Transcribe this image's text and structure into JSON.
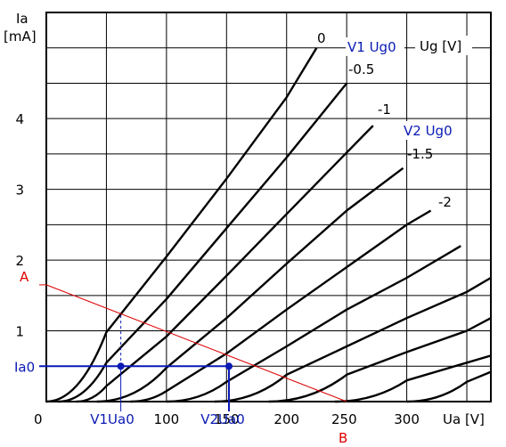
{
  "chart_data": {
    "type": "line",
    "title": "",
    "xlabel": "Ua [V]",
    "ylabel": "Ia [mA]",
    "xlim": [
      0,
      370
    ],
    "ylim": [
      0,
      5.5
    ],
    "grid": true,
    "x_ticks": [
      {
        "v": 0,
        "label": "0"
      },
      {
        "v": 100,
        "label": "100"
      },
      {
        "v": 150,
        "label": "150"
      },
      {
        "v": 200,
        "label": "200"
      },
      {
        "v": 300,
        "label": "300"
      }
    ],
    "y_ticks": [
      {
        "v": 1,
        "label": "1"
      },
      {
        "v": 2,
        "label": "2"
      },
      {
        "v": 3,
        "label": "3"
      },
      {
        "v": 4,
        "label": "4"
      }
    ],
    "x_tick_step": 50,
    "y_tick_step": 0.5,
    "legend_title": "Ug [V]",
    "series": [
      {
        "name": "0",
        "x": [
          0,
          50,
          100,
          150,
          200,
          225
        ],
        "y": [
          0,
          0.98,
          2.05,
          3.15,
          4.3,
          5.0
        ]
      },
      {
        "name": "-0.5",
        "x": [
          10,
          50,
          100,
          150,
          200,
          250
        ],
        "y": [
          0,
          0.55,
          1.45,
          2.45,
          3.45,
          4.5
        ]
      },
      {
        "name": "-1",
        "x": [
          25,
          50,
          100,
          150,
          200,
          250,
          272
        ],
        "y": [
          0,
          0.22,
          0.92,
          1.78,
          2.65,
          3.52,
          3.9
        ]
      },
      {
        "name": "-1.5",
        "x": [
          42,
          100,
          150,
          200,
          250,
          297
        ],
        "y": [
          0,
          0.48,
          1.18,
          1.95,
          2.7,
          3.3
        ]
      },
      {
        "name": "-2",
        "x": [
          70,
          100,
          150,
          200,
          250,
          300,
          320
        ],
        "y": [
          0,
          0.15,
          0.68,
          1.3,
          1.9,
          2.5,
          2.7
        ]
      },
      {
        "x": [
          100,
          150,
          200,
          250,
          300,
          345
        ],
        "y": [
          0,
          0.28,
          0.78,
          1.3,
          1.75,
          2.2
        ]
      },
      {
        "x": [
          140,
          200,
          250,
          300,
          350,
          370
        ],
        "y": [
          0,
          0.38,
          0.78,
          1.18,
          1.55,
          1.75
        ]
      },
      {
        "x": [
          185,
          250,
          300,
          350,
          370
        ],
        "y": [
          0,
          0.38,
          0.7,
          1.0,
          1.18
        ]
      },
      {
        "x": [
          240,
          300,
          350,
          370
        ],
        "y": [
          0,
          0.3,
          0.55,
          0.65
        ]
      },
      {
        "x": [
          300,
          350,
          370
        ],
        "y": [
          0,
          0.28,
          0.42
        ]
      }
    ],
    "load_line": {
      "from": [
        0,
        1.65
      ],
      "to": [
        250,
        0
      ],
      "start_label": "A",
      "end_label": "B"
    },
    "ia0": 0.5,
    "points": [
      {
        "x_label": "V1Ua0",
        "v_label": "V1 Ug0",
        "x": 62,
        "y": 0.5,
        "curve_top": 1.22
      },
      {
        "x_label": "V2Ua0",
        "v_label": "V2 Ug0",
        "x": 152,
        "y": 0.5,
        "curve_top": 0.5
      }
    ],
    "ia0_label": "Ia0",
    "x_label_250": "250",
    "colors": {
      "curve": "#000000",
      "grid": "#000000",
      "load": "#dd0000",
      "op": "#0a1ab4",
      "bg": "#ffffff"
    }
  }
}
